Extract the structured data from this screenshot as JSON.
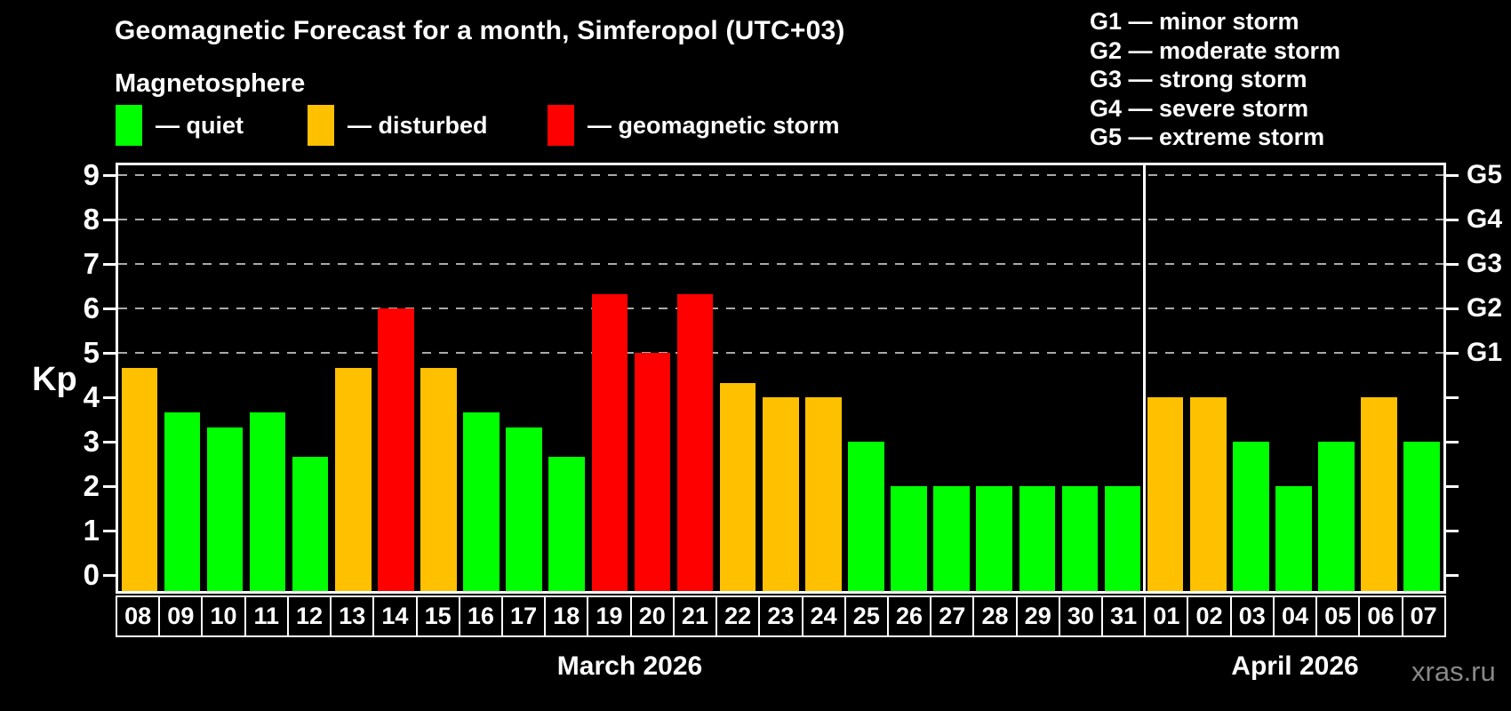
{
  "title": "Geomagnetic Forecast for a month, Simferopol (UTC+03)",
  "subtitle": "Magnetosphere",
  "legend": [
    {
      "status": "quiet",
      "label": "— quiet",
      "color": "#00ff00"
    },
    {
      "status": "disturbed",
      "label": "— disturbed",
      "color": "#ffc000"
    },
    {
      "status": "storm",
      "label": "— geomagnetic storm",
      "color": "#ff0000"
    }
  ],
  "g_scale_legend": [
    "G1 — minor storm",
    "G2 — moderate storm",
    "G3 — strong storm",
    "G4 — severe storm",
    "G5 — extreme storm"
  ],
  "watermark": "xras.ru",
  "chart_data": {
    "type": "bar",
    "ylabel": "Kp",
    "ylim": [
      0,
      9
    ],
    "yticks": [
      0,
      1,
      2,
      3,
      4,
      5,
      6,
      7,
      8,
      9
    ],
    "gridlines_at": [
      5,
      6,
      7,
      8,
      9
    ],
    "grid_style": "dashed",
    "right_axis_labels": [
      {
        "kp": 5,
        "label": "G1"
      },
      {
        "kp": 6,
        "label": "G2"
      },
      {
        "kp": 7,
        "label": "G3"
      },
      {
        "kp": 8,
        "label": "G4"
      },
      {
        "kp": 9,
        "label": "G5"
      }
    ],
    "colors": {
      "quiet": "#00ff00",
      "disturbed": "#ffc000",
      "storm": "#ff0000",
      "grid": "#aaaaaa",
      "axis": "#ffffff"
    },
    "months": [
      {
        "label": "March 2026",
        "days": [
          {
            "date": "08",
            "kp": 4.67,
            "status": "disturbed"
          },
          {
            "date": "09",
            "kp": 3.67,
            "status": "quiet"
          },
          {
            "date": "10",
            "kp": 3.33,
            "status": "quiet"
          },
          {
            "date": "11",
            "kp": 3.67,
            "status": "quiet"
          },
          {
            "date": "12",
            "kp": 2.67,
            "status": "quiet"
          },
          {
            "date": "13",
            "kp": 4.67,
            "status": "disturbed"
          },
          {
            "date": "14",
            "kp": 6.0,
            "status": "storm"
          },
          {
            "date": "15",
            "kp": 4.67,
            "status": "disturbed"
          },
          {
            "date": "16",
            "kp": 3.67,
            "status": "quiet"
          },
          {
            "date": "17",
            "kp": 3.33,
            "status": "quiet"
          },
          {
            "date": "18",
            "kp": 2.67,
            "status": "quiet"
          },
          {
            "date": "19",
            "kp": 6.33,
            "status": "storm"
          },
          {
            "date": "20",
            "kp": 5.0,
            "status": "storm"
          },
          {
            "date": "21",
            "kp": 6.33,
            "status": "storm"
          },
          {
            "date": "22",
            "kp": 4.33,
            "status": "disturbed"
          },
          {
            "date": "23",
            "kp": 4.0,
            "status": "disturbed"
          },
          {
            "date": "24",
            "kp": 4.0,
            "status": "disturbed"
          },
          {
            "date": "25",
            "kp": 3.0,
            "status": "quiet"
          },
          {
            "date": "26",
            "kp": 2.0,
            "status": "quiet"
          },
          {
            "date": "27",
            "kp": 2.0,
            "status": "quiet"
          },
          {
            "date": "28",
            "kp": 2.0,
            "status": "quiet"
          },
          {
            "date": "29",
            "kp": 2.0,
            "status": "quiet"
          },
          {
            "date": "30",
            "kp": 2.0,
            "status": "quiet"
          },
          {
            "date": "31",
            "kp": 2.0,
            "status": "quiet"
          }
        ]
      },
      {
        "label": "April 2026",
        "days": [
          {
            "date": "01",
            "kp": 4.0,
            "status": "disturbed"
          },
          {
            "date": "02",
            "kp": 4.0,
            "status": "disturbed"
          },
          {
            "date": "03",
            "kp": 3.0,
            "status": "quiet"
          },
          {
            "date": "04",
            "kp": 2.0,
            "status": "quiet"
          },
          {
            "date": "05",
            "kp": 3.0,
            "status": "quiet"
          },
          {
            "date": "06",
            "kp": 4.0,
            "status": "disturbed"
          },
          {
            "date": "07",
            "kp": 3.0,
            "status": "quiet"
          }
        ]
      }
    ]
  }
}
